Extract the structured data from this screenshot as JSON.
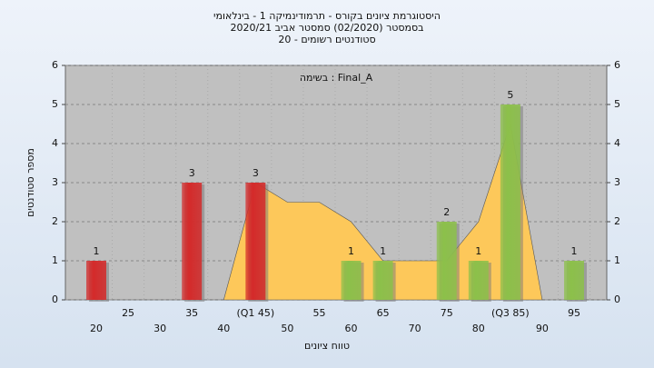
{
  "chart_data": {
    "type": "bar",
    "title": [
      "היסטוגרמת ציונים בקורס - תרמודינמיקה 1 - בינלאומי",
      "בסמסטר (02/2020) סמסטר אביב 2020/21",
      "סטודנטים רשומים - 20"
    ],
    "legend_text": "בשימה : Final_A",
    "x_label": "טווח ציונים",
    "y_label": "מספר סטודנטים",
    "categories": [
      "20",
      "25",
      "30",
      "35",
      "40",
      "(Q1 45)",
      "50",
      "55",
      "60",
      "65",
      "70",
      "75",
      "80",
      "(Q3 85)",
      "90",
      "95"
    ],
    "series": [
      {
        "values": [
          1,
          0,
          0,
          3,
          0,
          3,
          0,
          0,
          1,
          1,
          0,
          2,
          1,
          5,
          0,
          1
        ],
        "colors": [
          "#d42a2a",
          "#d42a2a",
          "#d42a2a",
          "#d42a2a",
          "#d42a2a",
          "#d42a2a",
          "#8cc04a",
          "#8cc04a",
          "#8cc04a",
          "#8cc04a",
          "#8cc04a",
          "#8cc04a",
          "#8cc04a",
          "#8cc04a",
          "#8cc04a",
          "#8cc04a"
        ]
      }
    ],
    "area": {
      "color": "#fdc85a",
      "values": [
        null,
        null,
        null,
        null,
        0,
        3,
        2.5,
        2.5,
        2,
        1,
        1,
        1,
        2,
        4.5,
        0,
        null
      ]
    },
    "ylim": [
      0,
      6
    ],
    "yticks": [
      0,
      1,
      2,
      3,
      4,
      5,
      6
    ],
    "grid": true
  }
}
